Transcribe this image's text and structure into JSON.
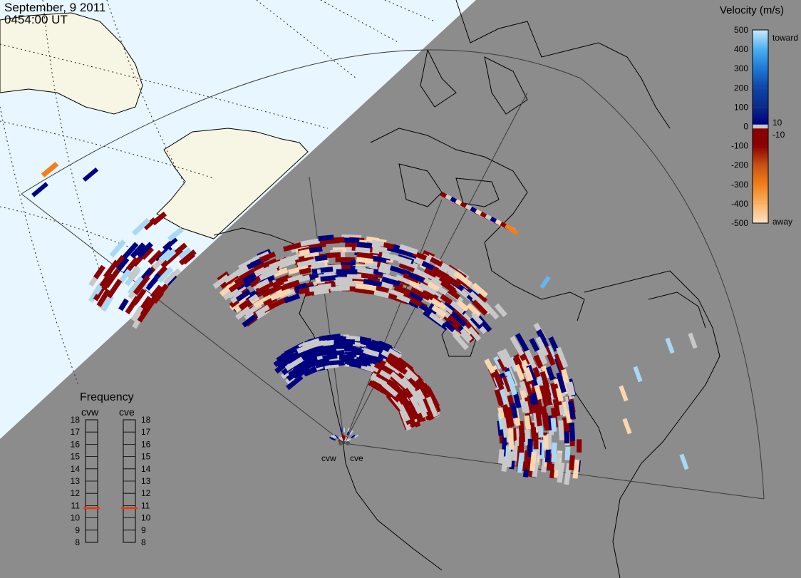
{
  "header": {
    "date": "September, 9 2011",
    "time": "0454:00 UT"
  },
  "radars": [
    {
      "code": "cvw",
      "label": "cvw",
      "frequency_mhz": 10.8
    },
    {
      "code": "cve",
      "label": "cve",
      "frequency_mhz": 10.8
    }
  ],
  "velocity_scale": {
    "title": "Velocity (m/s)",
    "ticks": [
      "500",
      "400",
      "300",
      "200",
      "100",
      "0",
      "-100",
      "-200",
      "-300",
      "-400",
      "-500"
    ],
    "extra_ticks": [
      "10",
      "-10"
    ],
    "toward_label": "toward",
    "away_label": "away",
    "colors": [
      "#fbe3c4",
      "#f9b366",
      "#f27f1a",
      "#c85213",
      "#8b0000",
      "#c8c8c8",
      "#00007f",
      "#0d45a8",
      "#1c79d6",
      "#4ab0f0",
      "#c9eafd"
    ]
  },
  "frequency_panel": {
    "title": "Frequency",
    "ticks": [
      "18",
      "17",
      "16",
      "15",
      "14",
      "13",
      "12",
      "11",
      "10",
      "9",
      "8"
    ],
    "indicator_color": "#e0401a"
  },
  "colors": {
    "night": "#8c8c8c",
    "day_ocean": "#e8f6ff",
    "day_land": "#f7f5e3",
    "coast": "#000000",
    "fov": "#333333"
  }
}
